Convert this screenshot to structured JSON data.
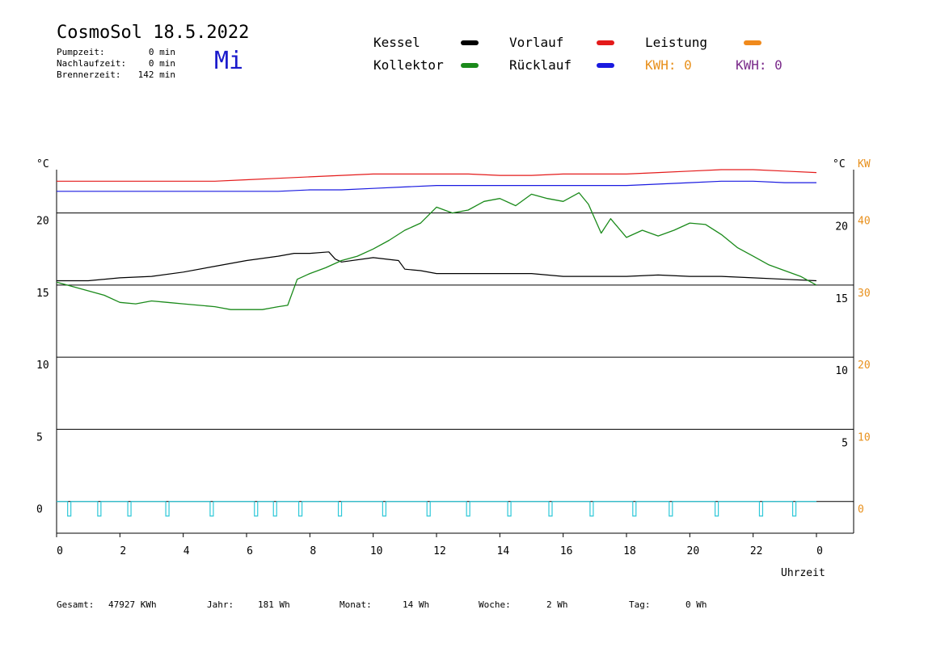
{
  "header": {
    "title": "CosmoSol 18.5.2022",
    "day": "Mi",
    "stats": [
      {
        "label": "Pumpzeit:",
        "value": "0 min"
      },
      {
        "label": "Nachlaufzeit:",
        "value": "0 min"
      },
      {
        "label": "Brennerzeit:",
        "value": "142 min"
      }
    ]
  },
  "legend": {
    "items": [
      {
        "label": "Kessel",
        "color": "#000000"
      },
      {
        "label": "Vorlauf",
        "color": "#e41a1a"
      },
      {
        "label": "Leistung",
        "color": "#f08a1c"
      },
      {
        "label": "Kollektor",
        "color": "#1a8a1a"
      },
      {
        "label": "Rücklauf",
        "color": "#1a1ae0"
      }
    ],
    "kwh_orange": "KWH: 0",
    "kwh_purple": "KWH: 0",
    "kwh_orange_color": "#e8901c",
    "kwh_purple_color": "#7a2a8a"
  },
  "axes": {
    "left_unit": "°C",
    "right_unit": "°C",
    "right_unit2": "KW",
    "xlabel": "Uhrzeit"
  },
  "footer": {
    "gesamt_label": "Gesamt:",
    "gesamt_value": "47927 KWh",
    "jahr_label": "Jahr:",
    "jahr_value": "181 Wh",
    "monat_label": "Monat:",
    "monat_value": "14 Wh",
    "woche_label": "Woche:",
    "woche_value": "2 Wh",
    "tag_label": "Tag:",
    "tag_value": "0 Wh"
  },
  "chart_data": {
    "type": "line",
    "xlabel": "Uhrzeit",
    "ylabel": "°C",
    "xlim": [
      0,
      24
    ],
    "ylim": [
      -2.2,
      23
    ],
    "x_ticks": [
      "0",
      "2",
      "4",
      "6",
      "8",
      "10",
      "12",
      "14",
      "16",
      "18",
      "20",
      "22",
      "0"
    ],
    "y_ticks_left": [
      0,
      5,
      10,
      15,
      20
    ],
    "y_ticks_right_c": [
      5,
      10,
      15,
      20
    ],
    "y_ticks_right_kw": [
      0,
      10,
      20,
      30,
      40
    ],
    "grid": true,
    "series": [
      {
        "name": "Vorlauf",
        "color": "#e41a1a",
        "x": [
          0,
          1,
          2,
          3,
          4,
          5,
          6,
          7,
          8,
          9,
          10,
          11,
          12,
          13,
          14,
          15,
          16,
          17,
          18,
          19,
          20,
          21,
          22,
          23,
          24
        ],
        "y": [
          22.2,
          22.2,
          22.2,
          22.2,
          22.2,
          22.2,
          22.3,
          22.4,
          22.5,
          22.6,
          22.7,
          22.7,
          22.7,
          22.7,
          22.6,
          22.6,
          22.7,
          22.7,
          22.7,
          22.8,
          22.9,
          23.0,
          23.0,
          22.9,
          22.8
        ]
      },
      {
        "name": "Rücklauf",
        "color": "#1a1ae0",
        "x": [
          0,
          1,
          2,
          3,
          4,
          5,
          6,
          7,
          8,
          9,
          10,
          11,
          12,
          13,
          14,
          15,
          16,
          17,
          18,
          19,
          20,
          21,
          22,
          23,
          24
        ],
        "y": [
          21.5,
          21.5,
          21.5,
          21.5,
          21.5,
          21.5,
          21.5,
          21.5,
          21.6,
          21.6,
          21.7,
          21.8,
          21.9,
          21.9,
          21.9,
          21.9,
          21.9,
          21.9,
          21.9,
          22.0,
          22.1,
          22.2,
          22.2,
          22.1,
          22.1
        ]
      },
      {
        "name": "Kessel",
        "color": "#000000",
        "x": [
          0,
          1,
          2,
          3,
          4,
          5,
          6,
          7,
          7.5,
          8,
          8.6,
          8.8,
          9,
          10,
          10.8,
          11,
          11.5,
          12,
          13,
          14,
          15,
          16,
          17,
          18,
          19,
          20,
          21,
          22,
          23,
          24
        ],
        "y": [
          15.3,
          15.3,
          15.5,
          15.6,
          15.9,
          16.3,
          16.7,
          17.0,
          17.2,
          17.2,
          17.3,
          16.8,
          16.6,
          16.9,
          16.7,
          16.1,
          16.0,
          15.8,
          15.8,
          15.8,
          15.8,
          15.6,
          15.6,
          15.6,
          15.7,
          15.6,
          15.6,
          15.5,
          15.4,
          15.3
        ]
      },
      {
        "name": "Kollektor",
        "color": "#1a8a1a",
        "x": [
          0,
          0.5,
          1,
          1.5,
          2,
          2.5,
          3,
          3.5,
          4,
          4.5,
          5,
          5.5,
          6,
          6.5,
          7,
          7.3,
          7.6,
          8,
          8.5,
          9,
          9.5,
          10,
          10.5,
          11,
          11.5,
          12,
          12.5,
          13,
          13.5,
          14,
          14.5,
          15,
          15.5,
          16,
          16.5,
          16.8,
          17,
          17.2,
          17.5,
          18,
          18.5,
          19,
          19.5,
          20,
          20.5,
          21,
          21.5,
          22,
          22.5,
          23,
          23.5,
          24
        ],
        "y": [
          15.2,
          14.9,
          14.6,
          14.3,
          13.8,
          13.7,
          13.9,
          13.8,
          13.7,
          13.6,
          13.5,
          13.3,
          13.3,
          13.3,
          13.5,
          13.6,
          15.4,
          15.8,
          16.2,
          16.7,
          17.0,
          17.5,
          18.1,
          18.8,
          19.3,
          20.4,
          20.0,
          20.2,
          20.8,
          21.0,
          20.5,
          21.3,
          21.0,
          20.8,
          21.4,
          20.6,
          19.6,
          18.6,
          19.6,
          18.3,
          18.8,
          18.4,
          18.8,
          19.3,
          19.2,
          18.5,
          17.6,
          17.0,
          16.4,
          16.0,
          15.6,
          15.0
        ]
      },
      {
        "name": "Leistung",
        "color": "#2ec8d8",
        "x": [
          0,
          24
        ],
        "y": [
          0,
          0
        ]
      }
    ],
    "pulses": [
      0.4,
      1.35,
      2.3,
      3.5,
      4.9,
      6.3,
      6.9,
      7.7,
      8.95,
      10.35,
      11.75,
      13.0,
      14.3,
      15.6,
      16.9,
      18.25,
      19.4,
      20.85,
      22.25,
      23.3
    ]
  }
}
